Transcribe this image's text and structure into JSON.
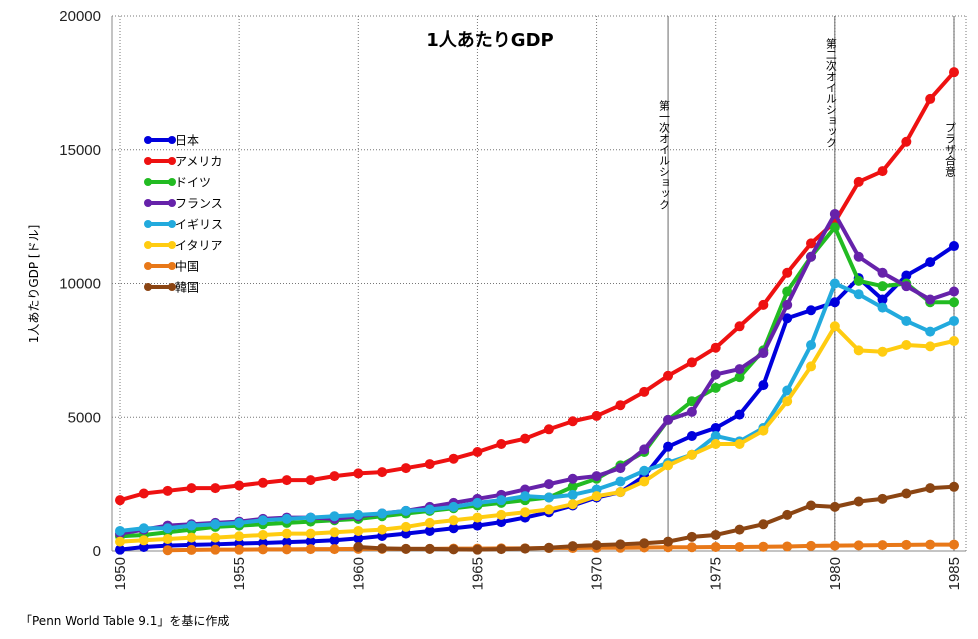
{
  "chart_data": {
    "type": "line",
    "title": "1人あたりGDP",
    "ylabel": "1人あたりGDP [ドル]",
    "xlabel": "",
    "xlim": [
      1950,
      1985.5
    ],
    "ylim": [
      0,
      20000
    ],
    "yticks": [
      0,
      5000,
      10000,
      15000,
      20000
    ],
    "xticks": [
      1950,
      1955,
      1960,
      1965,
      1970,
      1975,
      1980,
      1985
    ],
    "grid": "dotted",
    "legend_position": "left-middle",
    "x": [
      1950,
      1951,
      1952,
      1953,
      1954,
      1955,
      1956,
      1957,
      1958,
      1959,
      1960,
      1961,
      1962,
      1963,
      1964,
      1965,
      1966,
      1967,
      1968,
      1969,
      1970,
      1971,
      1972,
      1973,
      1974,
      1975,
      1976,
      1977,
      1978,
      1979,
      1980,
      1981,
      1982,
      1983,
      1984,
      1985
    ],
    "series": [
      {
        "name": "日本",
        "color": "#0000dd",
        "values": [
          50,
          150,
          200,
          230,
          250,
          280,
          300,
          330,
          360,
          400,
          470,
          560,
          650,
          750,
          850,
          950,
          1080,
          1250,
          1450,
          1700,
          2000,
          2200,
          2800,
          3900,
          4300,
          4600,
          5100,
          6200,
          8700,
          9000,
          9300,
          10200,
          9400,
          10300,
          10800,
          11400
        ]
      },
      {
        "name": "アメリカ",
        "color": "#ee1111",
        "values": [
          1900,
          2150,
          2250,
          2350,
          2350,
          2450,
          2550,
          2650,
          2650,
          2800,
          2900,
          2950,
          3100,
          3250,
          3450,
          3700,
          4000,
          4200,
          4550,
          4850,
          5050,
          5450,
          5950,
          6550,
          7050,
          7600,
          8400,
          9200,
          10400,
          11500,
          12300,
          13800,
          14200,
          15300,
          16900,
          17900
        ]
      },
      {
        "name": "ドイツ",
        "color": "#22bb22",
        "values": [
          550,
          600,
          700,
          800,
          900,
          950,
          1000,
          1050,
          1100,
          1150,
          1200,
          1300,
          1400,
          1500,
          1600,
          1700,
          1800,
          1900,
          2000,
          2400,
          2700,
          3200,
          3700,
          4900,
          5600,
          6100,
          6500,
          7500,
          9700,
          11000,
          12100,
          10100,
          9900,
          10000,
          9300,
          9300
        ]
      },
      {
        "name": "フランス",
        "color": "#6622aa",
        "values": [
          650,
          800,
          950,
          1000,
          1050,
          1100,
          1200,
          1250,
          1250,
          1200,
          1300,
          1400,
          1500,
          1650,
          1800,
          1950,
          2100,
          2300,
          2500,
          2700,
          2800,
          3100,
          3800,
          4900,
          5200,
          6600,
          6800,
          7400,
          9200,
          11000,
          12600,
          11000,
          10400,
          9900,
          9400,
          9700
        ]
      },
      {
        "name": "イギリス",
        "color": "#22aadd",
        "values": [
          750,
          850,
          850,
          950,
          1000,
          1050,
          1150,
          1200,
          1250,
          1300,
          1350,
          1400,
          1500,
          1550,
          1650,
          1800,
          1900,
          2050,
          2000,
          2100,
          2300,
          2600,
          3000,
          3300,
          3600,
          4300,
          4100,
          4600,
          6000,
          7700,
          10000,
          9600,
          9100,
          8600,
          8200,
          8600
        ]
      },
      {
        "name": "イタリア",
        "color": "#ffcc11",
        "values": [
          350,
          400,
          450,
          500,
          500,
          550,
          600,
          650,
          650,
          700,
          750,
          800,
          900,
          1050,
          1150,
          1250,
          1350,
          1450,
          1550,
          1750,
          2050,
          2200,
          2600,
          3200,
          3600,
          4000,
          4000,
          4500,
          5600,
          6900,
          8400,
          7500,
          7450,
          7700,
          7650,
          7850
        ]
      },
      {
        "name": "中国",
        "color": "#e87818",
        "values": [
          null,
          null,
          30,
          40,
          50,
          50,
          60,
          60,
          70,
          70,
          80,
          80,
          80,
          80,
          90,
          90,
          100,
          100,
          110,
          110,
          120,
          120,
          130,
          140,
          140,
          150,
          150,
          160,
          170,
          190,
          200,
          210,
          220,
          230,
          240,
          240
        ]
      },
      {
        "name": "韓国",
        "color": "#8b4513",
        "values": [
          null,
          null,
          null,
          null,
          null,
          null,
          null,
          null,
          null,
          null,
          150,
          100,
          80,
          80,
          60,
          50,
          70,
          90,
          120,
          180,
          220,
          250,
          290,
          350,
          530,
          600,
          800,
          1000,
          1350,
          1700,
          1650,
          1850,
          1950,
          2150,
          2350,
          2400
        ]
      }
    ],
    "annotations": [
      {
        "x": 1973,
        "text": "第一次オイルショック"
      },
      {
        "x": 1980,
        "text": "第二次オイルショック"
      },
      {
        "x": 1985,
        "text": "プラザ合意"
      }
    ]
  },
  "source_note": "「Penn World Table 9.1」を基に作成"
}
